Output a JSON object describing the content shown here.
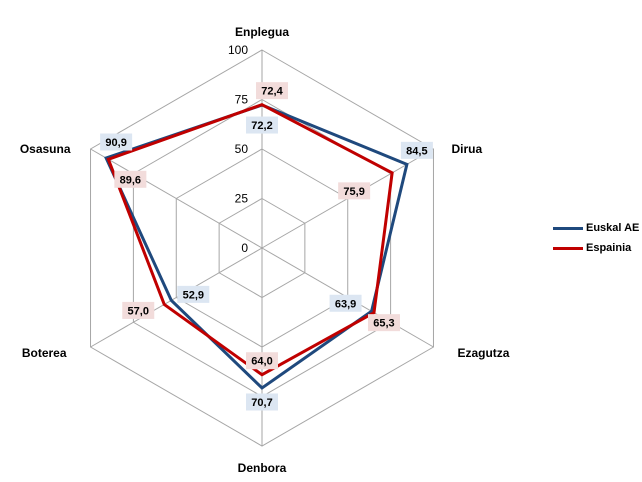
{
  "chart_data": {
    "type": "radar",
    "axes": [
      "Enplegua",
      "Dirua",
      "Ezagutza",
      "Denbora",
      "Boterea",
      "Osasuna"
    ],
    "rlim": [
      0,
      100
    ],
    "r_ticks": [
      "0",
      "25",
      "50",
      "75",
      "100"
    ],
    "grid": true,
    "legend_position": "right",
    "series": [
      {
        "name": "Euskal AE",
        "color": "#1F497D",
        "label_bg": "#DCE6F2",
        "values": [
          72.2,
          84.5,
          63.9,
          70.7,
          52.9,
          90.9
        ],
        "labels": [
          "72,2",
          "84,5",
          "63,9",
          "70,7",
          "52,9",
          "90,9"
        ]
      },
      {
        "name": "Espainia",
        "color": "#C00000",
        "label_bg": "#F2DCDB",
        "values": [
          72.4,
          75.9,
          65.3,
          64.0,
          57.0,
          89.6
        ],
        "labels": [
          "72,4",
          "75,9",
          "65,3",
          "64,0",
          "57,0",
          "89,6"
        ]
      }
    ]
  }
}
